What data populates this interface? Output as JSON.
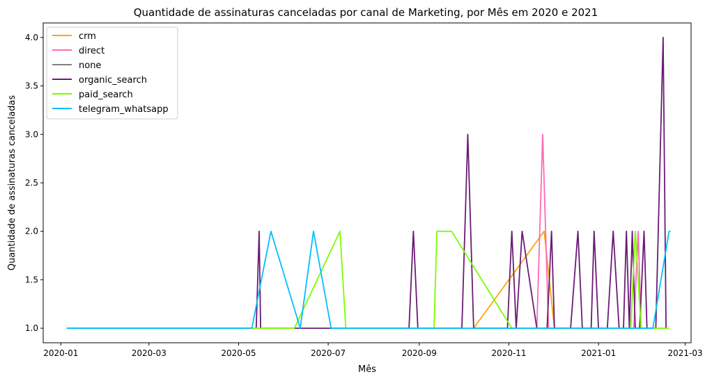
{
  "chart_data": {
    "type": "line",
    "title": "Quantidade de assinaturas canceladas por canal de Marketing, por Mês em 2020 e 2021",
    "xlabel": "Mês",
    "ylabel": "Quantidade de assinaturas canceladas",
    "xlim": [
      "2019-12-20",
      "2021-03-05"
    ],
    "ylim": [
      0.85,
      4.15
    ],
    "x_ticks": [
      "2020-01",
      "2020-03",
      "2020-05",
      "2020-07",
      "2020-09",
      "2020-11",
      "2021-01",
      "2021-03"
    ],
    "y_ticks": [
      "1.0",
      "1.5",
      "2.0",
      "2.5",
      "3.0",
      "3.5",
      "4.0"
    ],
    "legend_position": "upper-left",
    "grid": false,
    "series": [
      {
        "name": "crm",
        "color": "#FFA500",
        "x": [
          "2020-10-08",
          "2020-11-25",
          "2020-12-02"
        ],
        "y": [
          1,
          2,
          1
        ]
      },
      {
        "name": "direct",
        "color": "#FF69B4",
        "x": [
          "2020-11-10",
          "2020-11-20",
          "2020-11-24",
          "2020-11-28",
          "2021-01-02",
          "2021-01-25",
          "2021-01-28",
          "2021-01-30",
          "2021-02-14"
        ],
        "y": [
          1,
          1,
          3,
          1,
          1,
          1,
          2,
          1,
          1
        ]
      },
      {
        "name": "none",
        "color": "#808080",
        "x": [
          "2020-11-25",
          "2020-12-20",
          "2021-01-05"
        ],
        "y": [
          1,
          1,
          1
        ]
      },
      {
        "name": "organic_search",
        "color": "#6A1B74",
        "x": [
          "2020-01-05",
          "2020-05-13",
          "2020-05-15",
          "2020-05-16",
          "2020-06-22",
          "2020-08-25",
          "2020-08-28",
          "2020-08-31",
          "2020-09-30",
          "2020-10-04",
          "2020-10-08",
          "2020-10-31",
          "2020-11-03",
          "2020-11-06",
          "2020-11-10",
          "2020-11-20",
          "2020-11-27",
          "2020-11-30",
          "2020-12-02",
          "2020-12-13",
          "2020-12-18",
          "2020-12-21",
          "2020-12-27",
          "2020-12-29",
          "2021-01-01",
          "2021-01-07",
          "2021-01-11",
          "2021-01-15",
          "2021-01-18",
          "2021-01-20",
          "2021-01-22",
          "2021-01-24",
          "2021-01-26",
          "2021-01-29",
          "2021-02-01",
          "2021-02-03",
          "2021-02-06",
          "2021-02-09",
          "2021-02-14",
          "2021-02-16"
        ],
        "y": [
          1,
          1,
          2,
          1,
          1,
          1,
          2,
          1,
          1,
          3,
          1,
          1,
          2,
          1,
          2,
          1,
          1,
          2,
          1,
          1,
          2,
          1,
          1,
          2,
          1,
          1,
          2,
          1,
          1,
          2,
          1,
          2,
          1,
          1,
          2,
          1,
          1,
          1,
          4,
          1
        ]
      },
      {
        "name": "paid_search",
        "color": "#7CFC00",
        "x": [
          "2020-05-10",
          "2020-06-08",
          "2020-07-09",
          "2020-07-13",
          "2020-09-11",
          "2020-09-13",
          "2020-09-23",
          "2020-11-03",
          "2020-11-25",
          "2021-01-23",
          "2021-01-26",
          "2021-01-30",
          "2021-02-03",
          "2021-02-18"
        ],
        "y": [
          1,
          1,
          2,
          1,
          1,
          2,
          2,
          1,
          1,
          1,
          2,
          1,
          1,
          1
        ]
      },
      {
        "name": "telegram_whatsapp",
        "color": "#00BFFF",
        "x": [
          "2020-01-05",
          "2020-05-10",
          "2020-05-23",
          "2020-06-12",
          "2020-06-21",
          "2020-07-03",
          "2020-11-10",
          "2021-02-07",
          "2021-02-18",
          "2021-02-19"
        ],
        "y": [
          1,
          1,
          2,
          1,
          2,
          1,
          1,
          1,
          2,
          2
        ]
      }
    ]
  }
}
